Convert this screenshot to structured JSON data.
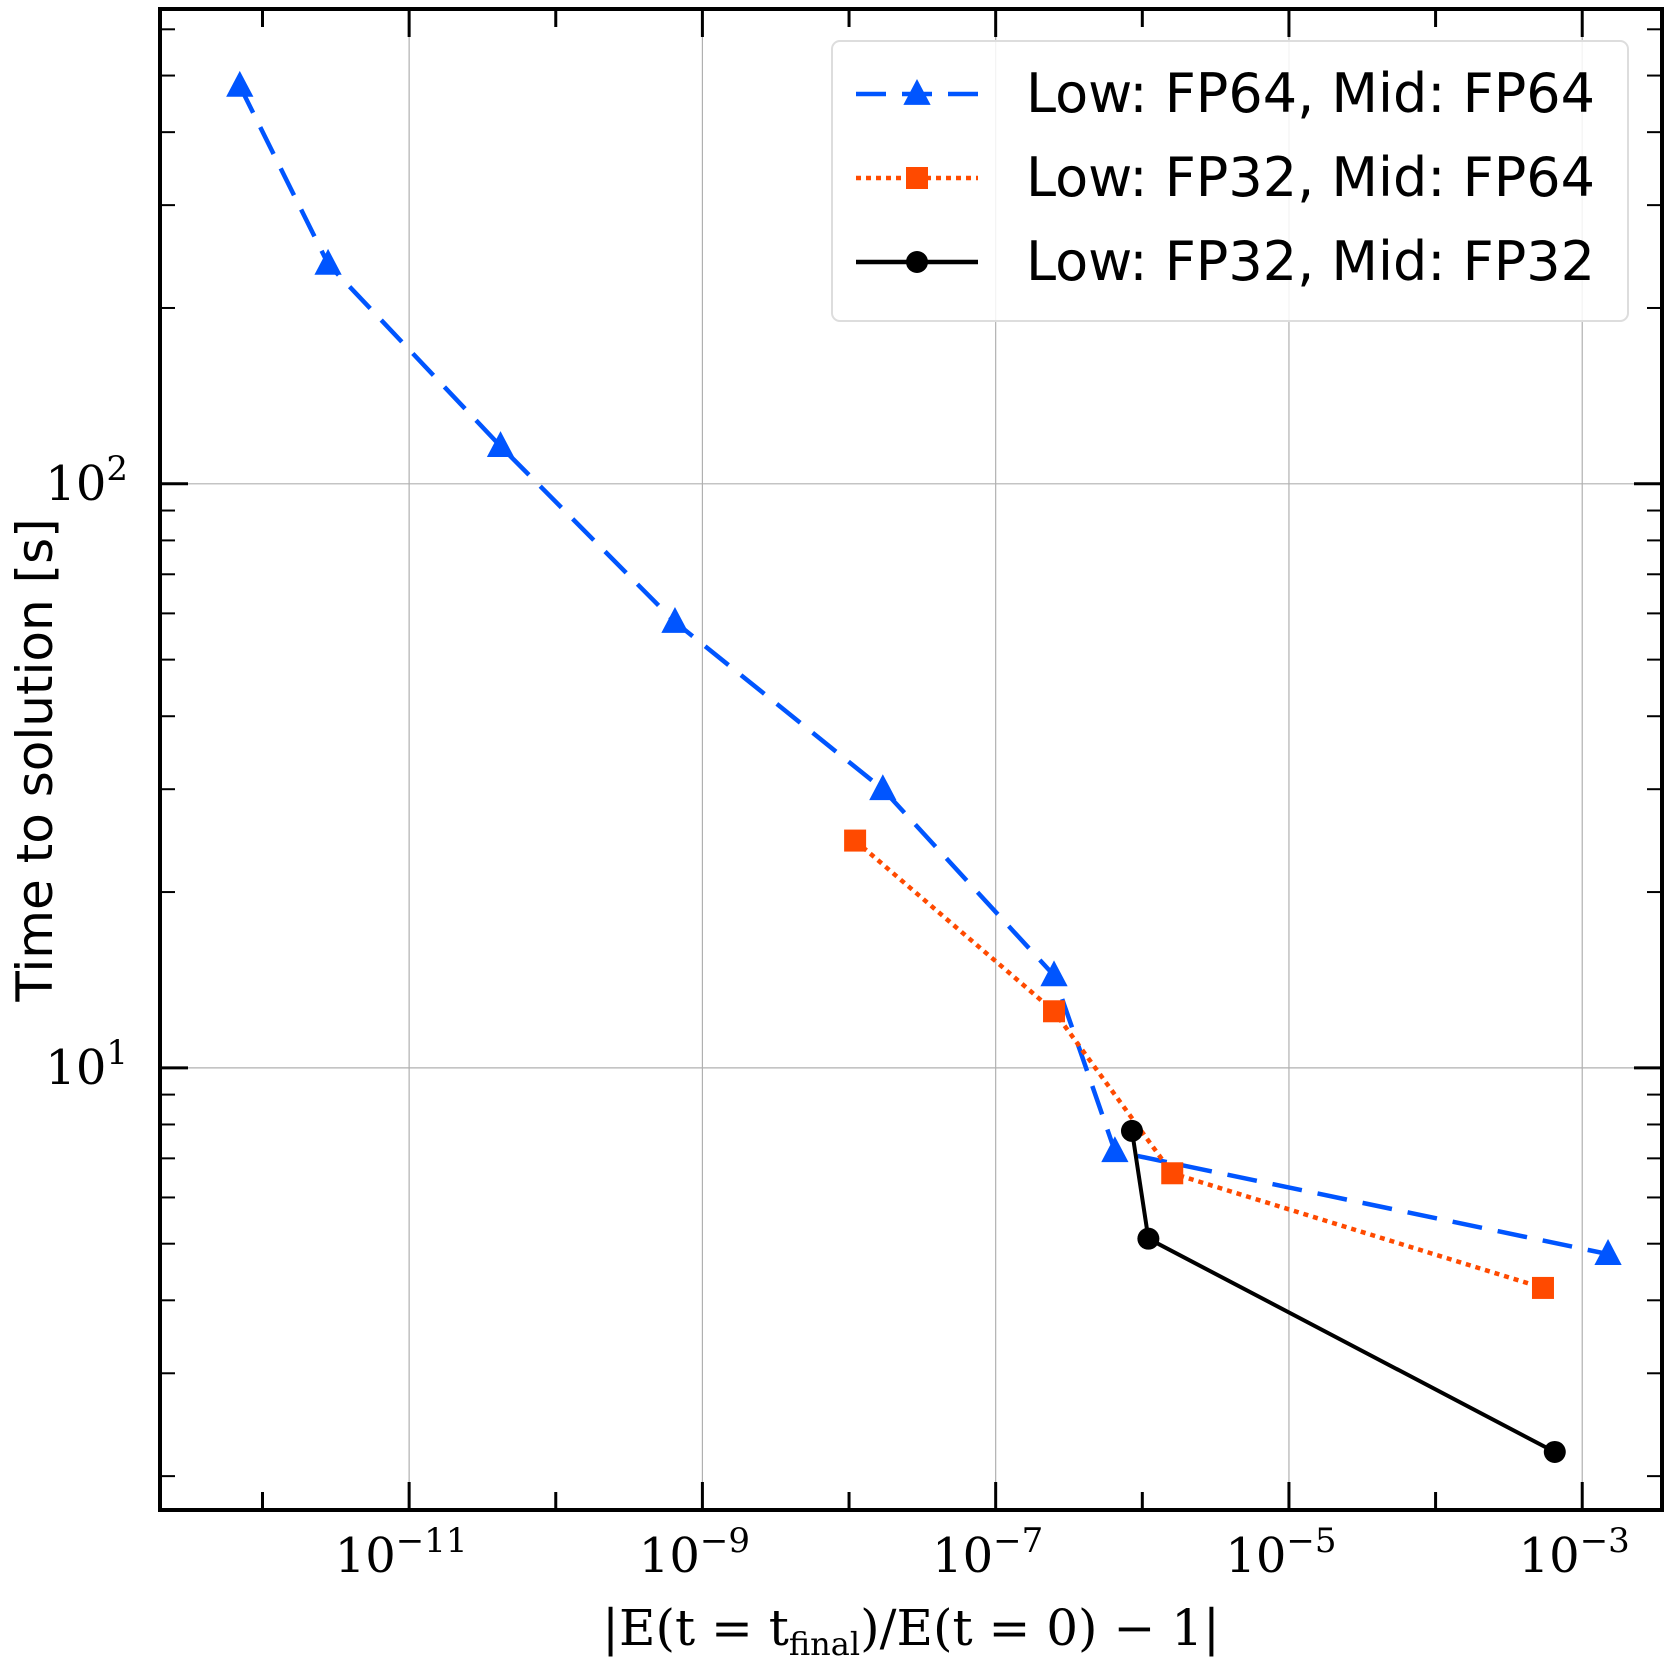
{
  "chart_data": {
    "type": "line",
    "xlabel": "|E(t = t_final)/E(t = 0) − 1|",
    "xlabel_parts": {
      "pre": "|E(t = t",
      "sub": "final",
      "post": ")/E(t = 0) − 1|"
    },
    "ylabel": "Time to solution [s]",
    "xscale": "log",
    "yscale": "log",
    "xlim": [
      2e-13,
      0.0035
    ],
    "ylim": [
      1.75,
      650
    ],
    "grid": true,
    "legend_placement": "top-right",
    "x_ticks": [
      {
        "base": "10",
        "exp": "−11"
      },
      {
        "base": "10",
        "exp": "−9"
      },
      {
        "base": "10",
        "exp": "−7"
      },
      {
        "base": "10",
        "exp": "−5"
      },
      {
        "base": "10",
        "exp": "−3"
      }
    ],
    "y_ticks": [
      {
        "base": "10",
        "exp": "1"
      },
      {
        "base": "10",
        "exp": "2"
      }
    ],
    "series": [
      {
        "name": "Low: FP64, Mid: FP64",
        "color": "#0055ff",
        "linestyle": "dashed",
        "marker": "triangle",
        "points": [
          [
            7e-13,
            480
          ],
          [
            2.8e-12,
            238
          ],
          [
            4.2e-11,
            116
          ],
          [
            6.5e-10,
            58
          ],
          [
            1.7e-08,
            30
          ],
          [
            2.5e-07,
            14.4
          ],
          [
            6.5e-07,
            7.2
          ],
          [
            0.0015,
            4.8
          ]
        ]
      },
      {
        "name": "Low: FP32, Mid: FP64",
        "color": "#ff4a00",
        "linestyle": "dotted",
        "marker": "square",
        "points": [
          [
            1.1e-08,
            24.5
          ],
          [
            2.5e-07,
            12.5
          ],
          [
            1.6e-06,
            6.6
          ],
          [
            0.00054,
            4.2
          ]
        ]
      },
      {
        "name": "Low: FP32, Mid: FP32",
        "color": "#000000",
        "linestyle": "solid",
        "marker": "circle",
        "points": [
          [
            8.5e-07,
            7.8
          ],
          [
            1.1e-06,
            5.1
          ],
          [
            0.00065,
            2.2
          ]
        ]
      }
    ]
  }
}
